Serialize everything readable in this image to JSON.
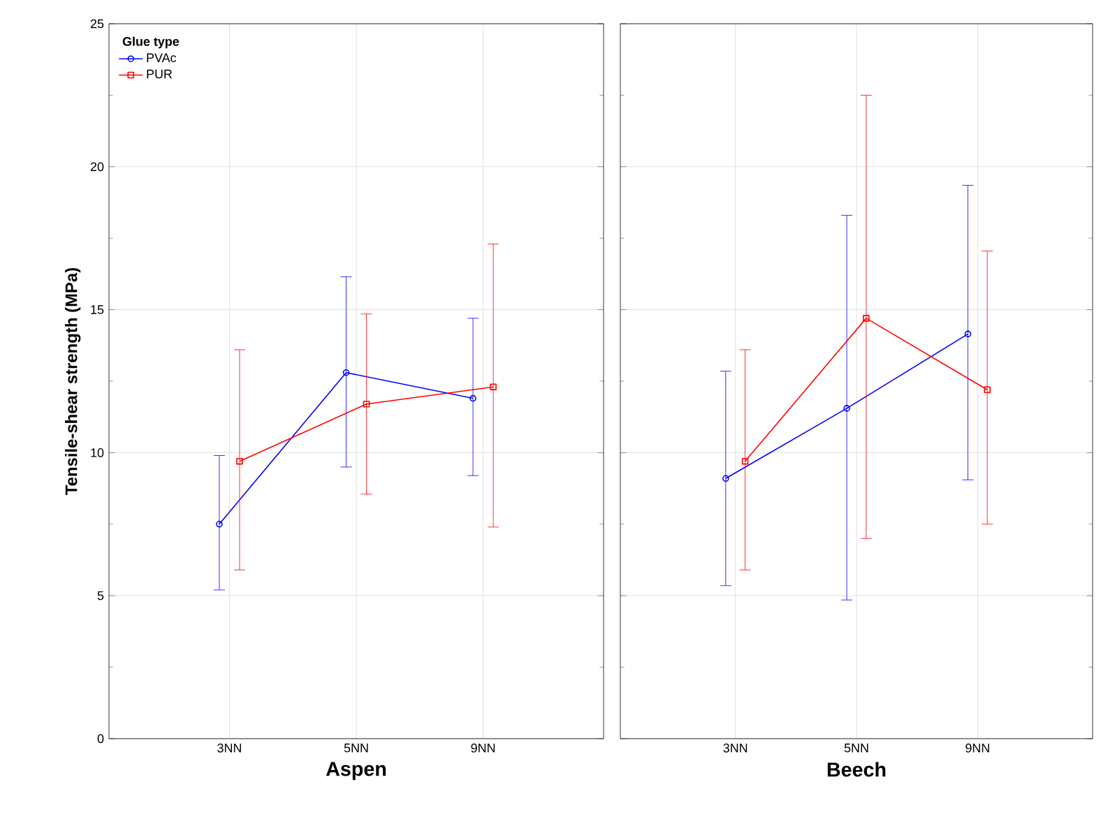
{
  "chart_data": [
    {
      "type": "line",
      "xlabel": "Aspen",
      "ylabel": "Tensile-shear strength (MPa)",
      "legend_title": "Glue type",
      "legend": "top left",
      "grid": true,
      "categories": [
        "3NN",
        "5NN",
        "9NN"
      ],
      "ylim": [
        0,
        25
      ],
      "yticks": [
        0,
        5,
        10,
        15,
        20,
        25
      ],
      "series": [
        {
          "name": "PVAc",
          "color": "#0000ff",
          "marker": "circle",
          "values": [
            7.5,
            12.8,
            11.9
          ],
          "errors": [
            [
              5.2,
              9.9
            ],
            [
              9.5,
              16.15
            ],
            [
              9.2,
              14.7
            ]
          ]
        },
        {
          "name": "PUR",
          "color": "#ff0000",
          "marker": "square",
          "values": [
            9.7,
            11.7,
            12.3
          ],
          "errors": [
            [
              5.9,
              13.6
            ],
            [
              8.55,
              14.85
            ],
            [
              7.4,
              17.3
            ]
          ]
        }
      ]
    },
    {
      "type": "line",
      "xlabel": "Beech",
      "grid": true,
      "tick_labels": "x",
      "categories": [
        "3NN",
        "5NN",
        "9NN"
      ],
      "ylim": [
        0,
        25
      ],
      "yticks": [
        0,
        5,
        10,
        15,
        20,
        25
      ],
      "series": [
        {
          "color": "#0000ff",
          "marker": "circle",
          "values": [
            9.1,
            11.55,
            14.15
          ],
          "errors": [
            [
              5.35,
              12.85
            ],
            [
              4.85,
              18.3
            ],
            [
              9.05,
              19.35
            ]
          ]
        },
        {
          "color": "#ff0000",
          "marker": "square",
          "values": [
            9.7,
            14.7,
            12.2
          ],
          "errors": [
            [
              5.9,
              13.6
            ],
            [
              7.0,
              22.5
            ],
            [
              7.5,
              17.05
            ]
          ]
        }
      ]
    }
  ]
}
